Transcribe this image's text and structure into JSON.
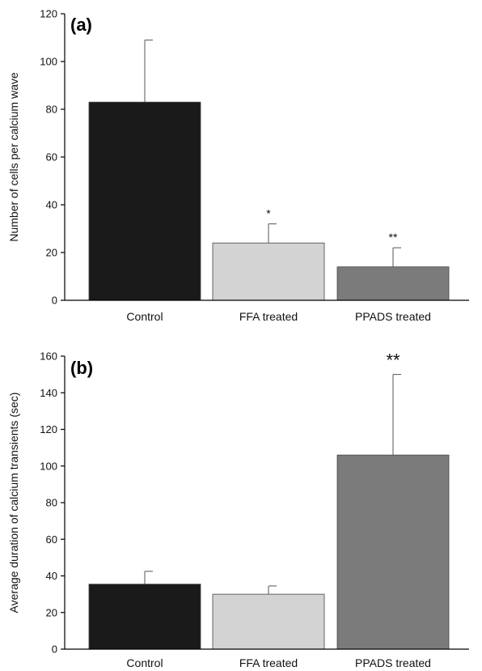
{
  "chart_data": [
    {
      "type": "bar",
      "panel_label": "(a)",
      "ylabel": "Number of cells per calcium wave",
      "ylim": [
        0,
        120
      ],
      "yticks": [
        0,
        20,
        40,
        60,
        80,
        100,
        120
      ],
      "categories": [
        "Control",
        "FFA treated",
        "PPADS treated"
      ],
      "values": [
        83,
        24,
        14
      ],
      "errors": [
        26,
        8,
        8
      ],
      "annotations": [
        "",
        "*",
        "**"
      ],
      "colors": [
        "#1a1a1a",
        "#d3d3d3",
        "#7b7b7b"
      ],
      "grid": false
    },
    {
      "type": "bar",
      "panel_label": "(b)",
      "ylabel": "Average duration of calcium transients (sec)",
      "ylim": [
        0,
        160
      ],
      "yticks": [
        0,
        20,
        40,
        60,
        80,
        100,
        120,
        140,
        160
      ],
      "categories": [
        "Control",
        "FFA treated",
        "PPADS treated"
      ],
      "values": [
        35.5,
        30,
        106
      ],
      "errors": [
        7,
        4.5,
        44
      ],
      "annotations": [
        "",
        "",
        "**"
      ],
      "colors": [
        "#1a1a1a",
        "#d3d3d3",
        "#7b7b7b"
      ],
      "grid": false
    }
  ]
}
